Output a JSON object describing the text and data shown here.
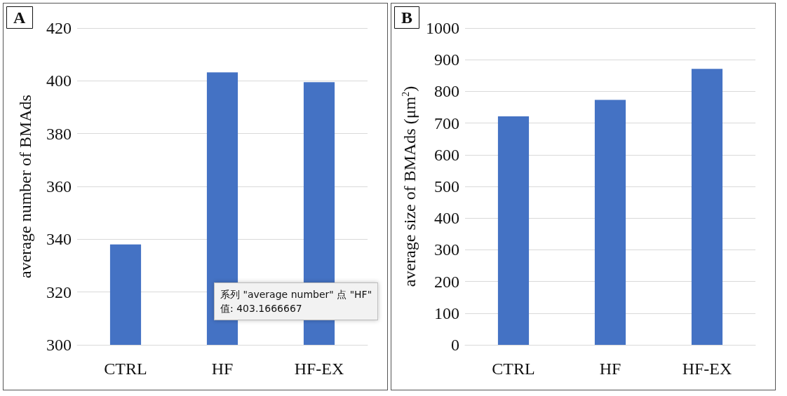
{
  "chart_data": [
    {
      "type": "bar",
      "title": "A",
      "ylabel": "average number of BMAds",
      "categories": [
        "CTRL",
        "HF",
        "HF-EX"
      ],
      "values": [
        338,
        403.2,
        399.5
      ],
      "color": "#4472c4",
      "ylim": [
        300,
        420
      ],
      "yticks": [
        300,
        320,
        340,
        360,
        380,
        400,
        420
      ],
      "grid": "y",
      "annotations": [
        "系列 \"average number\" 点 \"HF\"\n值: 403.1666667"
      ]
    },
    {
      "type": "bar",
      "title": "B",
      "ylabel": "average size of BMAds (μm$^{2}$)",
      "categories": [
        "CTRL",
        "HF",
        "HF-EX"
      ],
      "values": [
        721,
        773,
        871
      ],
      "color": "#4472c4",
      "ylim": [
        0,
        1000
      ],
      "yticks": [
        0,
        100,
        200,
        300,
        400,
        500,
        600,
        700,
        800,
        900,
        1000
      ],
      "grid": "y"
    }
  ]
}
